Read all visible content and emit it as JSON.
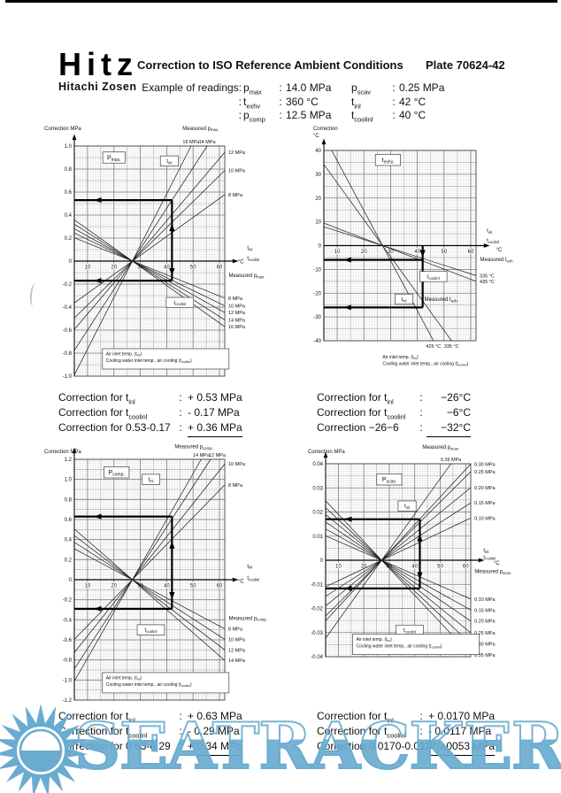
{
  "strings": {
    "colon": ":"
  },
  "header": {
    "logo": "Hitz",
    "logo_sub": "Hitachi Zosen",
    "title": "Correction to ISO Reference Ambient Conditions",
    "plate": "Plate 70624-42"
  },
  "example": {
    "caption": "Example of readings:",
    "rows": [
      {
        "lead": "",
        "l1": "p{max}",
        "v1": "14.0 MPa",
        "l2": "p{scav}",
        "v2": "0.25 MPa"
      },
      {
        "lead": ":",
        "l1": "t{exhv}",
        "v1": "360  °C",
        "l2": "t{inl}",
        "v2": "42 °C"
      },
      {
        "lead": ":",
        "l1": "p{comp}",
        "v1": "12.5 MPa",
        "l2": "t{coolinl}",
        "v2": "40 °C"
      }
    ]
  },
  "blocks": [
    {
      "rows": [
        {
          "label": "Correction for t{inl}",
          "value": "+ 0.53 MPa",
          "underline": false
        },
        {
          "label": "Correction for t{coolinl}",
          "value": "- 0.17 MPa",
          "underline": false
        },
        {
          "label": "Correction for 0.53-0.17",
          "value": "+ 0.36 MPa",
          "underline": true
        }
      ]
    },
    {
      "rows": [
        {
          "label": "Correction for t{inl}",
          "value": "−26°C",
          "underline": false
        },
        {
          "label": "Correction for t{coolinl}",
          "value": "−6°C",
          "underline": false
        },
        {
          "label": "Correction −26−6",
          "value": "−32°C",
          "underline": true
        }
      ]
    },
    {
      "rows": [
        {
          "label": "Correction for t{inl}",
          "value": "+ 0.63 MPa",
          "underline": false
        },
        {
          "label": "Correction for t{coolinl}",
          "value": "- 0.29 MPa",
          "underline": false
        },
        {
          "label": "Correction for 0.63-0.29",
          "value": "+ 0.34 MPa",
          "underline": true
        }
      ]
    },
    {
      "rows": [
        {
          "label": "Correction for t{inl}",
          "value": "+ 0.0170 MPa",
          "underline": false
        },
        {
          "label": "Correction for t{coolinl}",
          "value": "- 0.0117 MPa",
          "underline": false
        },
        {
          "label": "Correction 0.0170-0.0117",
          "value": "+ 0.0053 MPa",
          "underline": true
        }
      ]
    }
  ],
  "watermark": {
    "text": "SEATRACKER.RU",
    "color": "#6aaccf"
  },
  "chart_data": [
    {
      "name": "p_max",
      "type": "line",
      "title": "P{max.}",
      "ylabel": [
        "Correction MPa"
      ],
      "xlim": [
        5,
        62
      ],
      "ylim": [
        -1.0,
        1.0
      ],
      "xticks": [
        10,
        20,
        30,
        40,
        50,
        60
      ],
      "ytick": 0.2,
      "ydec": 1,
      "minor": [
        1,
        0.02
      ],
      "med": [
        5,
        0.1
      ],
      "pivot": [
        27,
        0
      ],
      "fans": [
        {
          "label": "t{inl}",
          "lines": [
            {
              "label": "16 MPa",
              "slope": 0.045
            },
            {
              "label": "14 MPa",
              "slope": 0.0353
            },
            {
              "label": "12 MPa",
              "slope": 0.027
            },
            {
              "label": "10 MPa",
              "slope": 0.0225
            },
            {
              "label": "8 MPa",
              "slope": 0.0165
            }
          ]
        },
        {
          "label": "t{coolinl}",
          "lines": [
            {
              "label": "8 MPa",
              "slope": -0.0092
            },
            {
              "label": "10 MPa",
              "slope": -0.0111
            },
            {
              "label": "12 MPa",
              "slope": -0.0128
            },
            {
              "label": "14 MPa",
              "slope": -0.0146
            },
            {
              "label": "16 MPa",
              "slope": -0.0163
            }
          ]
        }
      ],
      "inner_labels": [
        {
          "text": "P{max.}",
          "x": 20,
          "y": 0.9,
          "boxed": true,
          "big": true
        },
        {
          "text": "t{inl}",
          "x": 41,
          "y": 0.87,
          "boxed": true
        },
        {
          "text": "t{coolinl}",
          "x": 45,
          "y": -0.36,
          "boxed": true
        }
      ],
      "outer_labels": [
        {
          "text": "Measured p{max.}",
          "cx": 46,
          "cy": 1.14
        },
        {
          "text": "°C",
          "cx": 67,
          "cy": -0.02
        },
        {
          "text": "t{inl}",
          "cx": 70.5,
          "cy": 0.1
        },
        {
          "text": "t{coolinl}",
          "cx": 70.5,
          "cy": 0.01
        },
        {
          "text": "Measured p{max.}",
          "cx": 63.5,
          "cy": -0.14
        }
      ],
      "example": {
        "x": 42,
        "ys": [
          0.53,
          -0.17
        ]
      },
      "legend": {
        "lines": [
          "Air inlet temp. (t{inl})",
          "Cooling water inlet temp., air cooling (t{coolinl})"
        ],
        "boxed": true,
        "x": 17,
        "y": -0.8
      }
    },
    {
      "name": "t_exhv",
      "type": "line",
      "title": "t{exhv.}",
      "ylabel": [
        "Correction",
        "°C"
      ],
      "xlim": [
        5,
        62
      ],
      "ylim": [
        -40,
        40
      ],
      "xticks": [
        10,
        20,
        30,
        40,
        50,
        60
      ],
      "ytick": 10,
      "ydec": 0,
      "minor": [
        1,
        1
      ],
      "med": [
        5,
        5
      ],
      "pivot": [
        27,
        0
      ],
      "fans": [
        {
          "label": "t{inl}",
          "lines": [
            {
              "label": "425 °C",
              "slope": -2.1
            },
            {
              "label": "335 °C",
              "slope": -1.55
            }
          ]
        },
        {
          "label": "t{coolinl}",
          "lines": [
            {
              "label": "335 °C",
              "slope": -0.36
            },
            {
              "label": "435 °C",
              "slope": -0.43
            }
          ]
        }
      ],
      "inner_labels": [
        {
          "text": "t{exhv.}",
          "x": 29,
          "y": 36,
          "boxed": true,
          "big": true
        },
        {
          "text": "t{coolinl}",
          "x": 46,
          "y": -13,
          "boxed": true
        },
        {
          "text": "t{inl}",
          "x": 35,
          "y": -22.5,
          "boxed": true
        },
        {
          "text": "Measured t{exh.}",
          "x": 49,
          "y": -22.5,
          "boxed": false
        }
      ],
      "outer_labels": [
        {
          "text": "t{inl}",
          "cx": 66,
          "cy": 5.5
        },
        {
          "text": "t{coolinl}",
          "cx": 66,
          "cy": 1.5
        },
        {
          "text": "°C",
          "cx": 69.5,
          "cy": -2.5
        },
        {
          "text": "Measured t{exh.}",
          "cx": 63.5,
          "cy": -6.5
        }
      ],
      "example": {
        "x": 42,
        "ys": [
          -26,
          -6
        ]
      },
      "legend": {
        "lines": [
          "Air inlet temp. (t{inl})",
          "Cooling water inlet temp., air cooling (t{coolinl})"
        ],
        "boxed": false,
        "x": 27,
        "y": -46.5
      }
    },
    {
      "name": "p_comp",
      "type": "line",
      "title": "P{comp.}",
      "ylabel": [
        "Correction MPa"
      ],
      "xlim": [
        5,
        62
      ],
      "ylim": [
        -1.2,
        1.2
      ],
      "xticks": [
        10,
        20,
        30,
        40,
        50,
        60
      ],
      "ytick": 0.2,
      "ydec": 1,
      "minor": [
        1,
        0.02
      ],
      "med": [
        5,
        0.1
      ],
      "pivot": [
        27,
        0
      ],
      "fans": [
        {
          "label": "t{inl}",
          "lines": [
            {
              "label": "14 MPa",
              "slope": 0.046
            },
            {
              "label": "12 MPa",
              "slope": 0.0405
            },
            {
              "label": "10 MPa",
              "slope": 0.033
            },
            {
              "label": "8 MPa",
              "slope": 0.027
            }
          ]
        },
        {
          "label": "t{coolinl}",
          "lines": [
            {
              "label": "8 MPa",
              "slope": -0.014
            },
            {
              "label": "10 MPa",
              "slope": -0.017
            },
            {
              "label": "12 MPa",
              "slope": -0.02
            },
            {
              "label": "14 MPa",
              "slope": -0.023
            }
          ]
        }
      ],
      "inner_labels": [
        {
          "text": "P{comp.}",
          "x": 21,
          "y": 1.07,
          "boxed": true,
          "big": true
        },
        {
          "text": "t{inl}",
          "x": 34,
          "y": 1.0,
          "boxed": true
        },
        {
          "text": "t{coolinl}",
          "x": 34,
          "y": -0.5,
          "boxed": true
        }
      ],
      "outer_labels": [
        {
          "text": "Measured p{comp.}",
          "cx": 43,
          "cy": 1.31
        },
        {
          "text": "°C",
          "cx": 67,
          "cy": -0.03
        },
        {
          "text": "t{inl}",
          "cx": 70.5,
          "cy": 0.12
        },
        {
          "text": "t{coolinl}",
          "cx": 70.5,
          "cy": 0.0
        },
        {
          "text": "Measured p{comp.}",
          "cx": 63.5,
          "cy": -0.4
        }
      ],
      "example": {
        "x": 42,
        "ys": [
          0.63,
          -0.29
        ]
      },
      "legend": {
        "lines": [
          "Air inlet temp. (t{inl})",
          "Cooling water inlet temp., air cooling (t{coolinl})"
        ],
        "boxed": true,
        "x": 17,
        "y": -0.97
      }
    },
    {
      "name": "p_scav",
      "type": "line",
      "title": "P{scav.}",
      "ylabel": [
        "Correction MPa"
      ],
      "xlim": [
        5,
        62
      ],
      "ylim": [
        -0.04,
        0.04
      ],
      "xticks": [
        10,
        20,
        30,
        40,
        50,
        60
      ],
      "ytick": 0.01,
      "ydec": 2,
      "minor": [
        1,
        0.001
      ],
      "med": [
        5,
        0.005
      ],
      "pivot": [
        27,
        0
      ],
      "fans": [
        {
          "label": "t{inl}",
          "lines": [
            {
              "label": "0.35 MPa",
              "slope": 0.00147
            },
            {
              "label": "0.30 MPa",
              "slope": 0.00114
            },
            {
              "label": "0.25 MPa",
              "slope": 0.00105
            },
            {
              "label": "0.20 MPa",
              "slope": 0.00086
            },
            {
              "label": "0.15 MPa",
              "slope": 0.00068
            },
            {
              "label": "0.10 MPa",
              "slope": 0.0005
            }
          ]
        },
        {
          "label": "t{coolinl}",
          "lines": [
            {
              "label": "0.10 MPa",
              "slope": -0.00046
            },
            {
              "label": "0.15 MPa",
              "slope": -0.00059
            },
            {
              "label": "0.20 MPa",
              "slope": -0.00072
            },
            {
              "label": "0.25 MPa",
              "slope": -0.00086
            },
            {
              "label": "0.30 MPa",
              "slope": -0.00099
            },
            {
              "label": "0.35 MPa",
              "slope": -0.00112
            }
          ]
        }
      ],
      "inner_labels": [
        {
          "text": "P{scav.}",
          "x": 30,
          "y": 0.0335,
          "boxed": true,
          "big": true
        },
        {
          "text": "t{inl}",
          "x": 37,
          "y": 0.0225,
          "boxed": true
        },
        {
          "text": "t{coolinl}",
          "x": 38,
          "y": -0.029,
          "boxed": true
        }
      ],
      "outer_labels": [
        {
          "text": "Measured p{scav.}",
          "cx": 43,
          "cy": 0.0462
        },
        {
          "text": "t{inl}",
          "cx": 67,
          "cy": 0.0035
        },
        {
          "text": "t{coolinl}",
          "cx": 67,
          "cy": 0.0006
        },
        {
          "text": "°C",
          "cx": 71,
          "cy": -0.0018
        },
        {
          "text": "Measured p{scav.}",
          "cx": 63.5,
          "cy": -0.0053
        }
      ],
      "example": {
        "x": 42,
        "ys": [
          0.017,
          -0.0117
        ]
      },
      "legend": {
        "lines": [
          "Air inlet temp. (t{inl})",
          "Cooling water inlet temp., air cooling (t{coolinl})"
        ],
        "boxed": true,
        "x": 17,
        "y": -0.0325
      }
    }
  ]
}
